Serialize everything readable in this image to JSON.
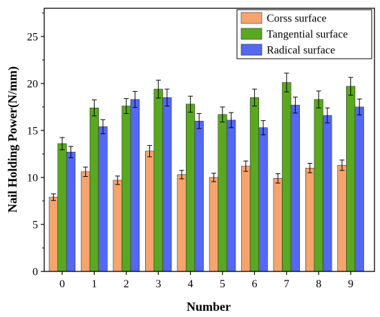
{
  "chart_data": {
    "type": "bar",
    "title": "",
    "xlabel": "Number",
    "ylabel": "Nail Holding Power(N/mm)",
    "categories": [
      "0",
      "1",
      "2",
      "3",
      "4",
      "5",
      "6",
      "7",
      "8",
      "9"
    ],
    "ylim": [
      0,
      28
    ],
    "yticks": [
      0,
      5,
      10,
      15,
      20,
      25
    ],
    "grid": false,
    "legend_position": "top-right",
    "series": [
      {
        "name": "Corss surface",
        "color": "#F5A46E",
        "values": [
          7.9,
          10.6,
          9.7,
          12.8,
          10.3,
          10.0,
          11.2,
          9.9,
          11.0,
          11.3
        ],
        "errors": [
          0.35,
          0.5,
          0.45,
          0.6,
          0.45,
          0.45,
          0.55,
          0.5,
          0.5,
          0.55
        ]
      },
      {
        "name": "Tangential surface",
        "color": "#5AA81E",
        "values": [
          13.6,
          17.4,
          17.6,
          19.4,
          17.8,
          16.7,
          18.5,
          20.1,
          18.3,
          19.7
        ],
        "errors": [
          0.65,
          0.85,
          0.8,
          0.95,
          0.85,
          0.8,
          0.9,
          1.0,
          0.9,
          0.95
        ]
      },
      {
        "name": "Radical surface",
        "color": "#5468F0",
        "values": [
          12.7,
          15.4,
          18.3,
          18.5,
          16.0,
          16.1,
          15.3,
          17.7,
          16.6,
          17.5
        ],
        "errors": [
          0.6,
          0.75,
          0.85,
          0.9,
          0.8,
          0.8,
          0.75,
          0.85,
          0.8,
          0.85
        ]
      }
    ]
  }
}
